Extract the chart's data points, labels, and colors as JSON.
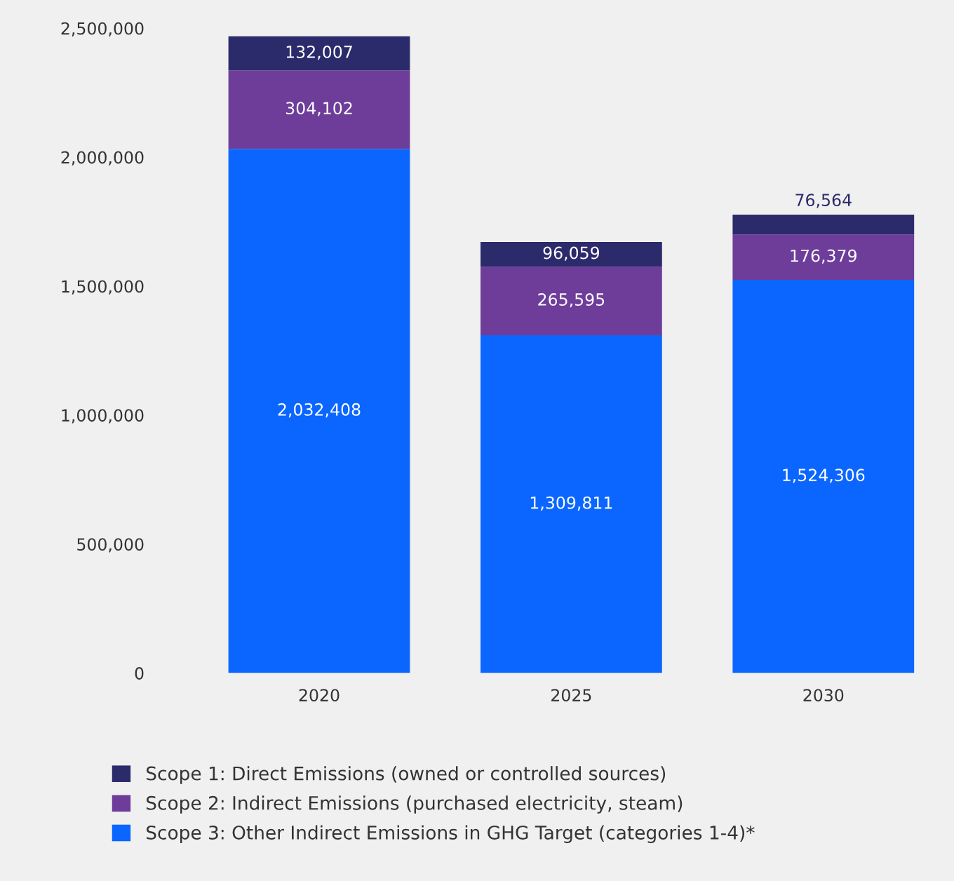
{
  "chart_data": {
    "type": "bar",
    "stacked": true,
    "categories": [
      "2020",
      "2025",
      "2030"
    ],
    "series": [
      {
        "name": "Scope 3: Other Indirect Emissions in GHG Target (categories 1-4)*",
        "color": "#0a66ff",
        "values": [
          2032408,
          1309811,
          1524306
        ],
        "value_labels": [
          "2,032,408",
          "1,309,811",
          "1,524,306"
        ]
      },
      {
        "name": "Scope 2: Indirect Emissions (purchased electricity, steam)",
        "color": "#6e3d9a",
        "values": [
          304102,
          265595,
          176379
        ],
        "value_labels": [
          "304,102",
          "265,595",
          "176,379"
        ]
      },
      {
        "name": "Scope 1: Direct Emissions (owned or controlled sources)",
        "color": "#2b2a6b",
        "values": [
          132007,
          96059,
          76564
        ],
        "value_labels": [
          "132,007",
          "96,059",
          "76,564"
        ]
      }
    ],
    "ylim": [
      0,
      2500000
    ],
    "yticks": [
      0,
      {
        "value": 500000,
        "label": "500,000"
      },
      {
        "value": 1000000,
        "label": "1,000,000"
      },
      {
        "value": 1500000,
        "label": "1,500,000"
      },
      {
        "value": 2000000,
        "label": "2,000,000"
      },
      {
        "value": 2500000,
        "label": "2,500,000"
      }
    ],
    "legend": "bottom",
    "grid": false
  }
}
